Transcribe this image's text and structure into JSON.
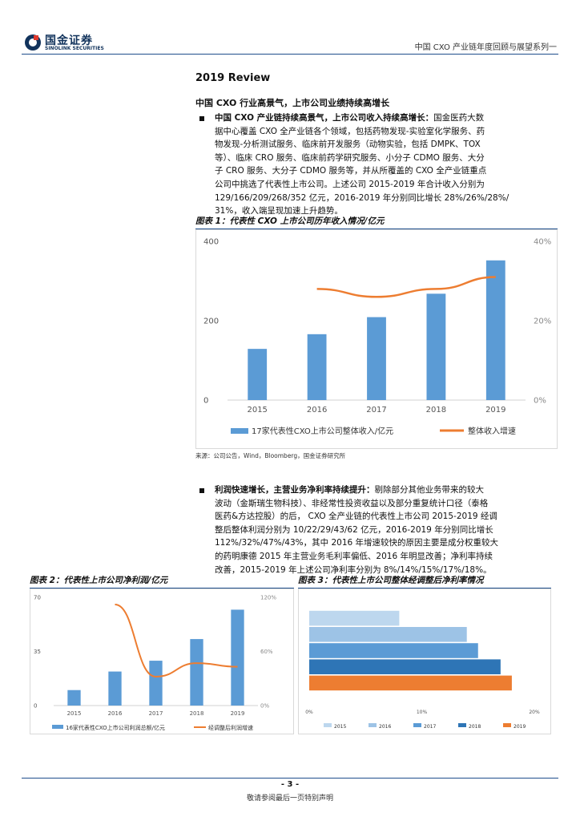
{
  "header": {
    "brand_cn": "国金证券",
    "brand_en": "SINOLINK SECURITIES",
    "report_series": "中国 CXO 产业链年度回顾与展望系列一"
  },
  "section": {
    "title": "2019 Review",
    "subtitle": "中国 CXO 行业高景气，上市公司业绩持续高增长"
  },
  "para1": {
    "lead": "中国 CXO 产业链持续高景气，上市公司收入持续高增长：",
    "lines": [
      "国金医药大数",
      "据中心覆盖 CXO 全产业链各个领域，包括药物发现-实验室化学服务、药",
      "物发现-分析测试服务、临床前开发服务（动物实验，包括 DMPK、TOX",
      "等）、临床 CRO 服务、临床前药学研究服务、小分子 CDMO 服务、大分",
      "子 CRO 服务、大分子 CDMO 服务等，并从所覆盖的 CXO 全产业链重点",
      "公司中挑选了代表性上市公司。上述公司 2015-2019 年合计收入分别为",
      "129/166/209/268/352 亿元，2016-2019 年分别同比增长 28%/26%/28%/",
      "31%，收入端呈现加速上升趋势。"
    ]
  },
  "fig1": {
    "caption": "图表 1：代表性 CXO 上市公司历年收入情况/亿元",
    "legend_bar": "17家代表性CXO上市公司整体收入/亿元",
    "legend_line": "整体收入增速"
  },
  "source_text": "来源：公司公告，Wind，Bloomberg，国金证券研究所",
  "para2": {
    "lead": "利润快速增长，主营业务净利率持续提升：",
    "lines": [
      "剔除部分其他业务带来的较大",
      "波动（金斯瑞生物科技）、非经常性投资收益以及部分重复统计口径（泰格",
      "医药&方达控股）的后， CXO 全产业链的代表性上市公司 2015-2019 经调",
      "整后整体利润分别为 10/22/29/43/62 亿元，2016-2019 年分别同比增长",
      "112%/32%/47%/43%，其中 2016 年增速较快的原因主要是成分权重较大",
      "的药明康德 2015 年主营业务毛利率偏低、2016 年明显改善；净利率持续",
      "改善，2015-2019 年上述公司净利率分别为 8%/14%/15%/17%/18%。"
    ]
  },
  "fig2": {
    "caption": "图表 2：代表性上市公司净利润/亿元",
    "legend_bar": "16家代表性CXO上市公司利润总额/亿元",
    "legend_line": "经调整后利润增速"
  },
  "fig3": {
    "caption": "图表 3：代表性上市公司整体经调整后净利率情况"
  },
  "footer": {
    "page": "- 3 -",
    "note": "敬请参阅最后一页特别声明"
  },
  "chart_data": [
    {
      "type": "bar",
      "categories": [
        "2015",
        "2016",
        "2017",
        "2018",
        "2019"
      ],
      "series": [
        {
          "name": "17家代表性CXO上市公司整体收入/亿元",
          "values": [
            129,
            166,
            209,
            268,
            352
          ],
          "color": "#5b9bd5",
          "axis": "left"
        },
        {
          "name": "整体收入增速",
          "type": "line",
          "x": [
            "2016",
            "2017",
            "2018",
            "2019"
          ],
          "values": [
            28,
            26,
            28,
            31
          ],
          "color": "#ed7d31",
          "axis": "right"
        }
      ],
      "ylim": [
        0,
        400
      ],
      "yticks": [
        "0",
        "200",
        "400"
      ],
      "y2lim": [
        0,
        40
      ],
      "y2ticks": [
        "0%",
        "20%",
        "40%"
      ]
    },
    {
      "type": "bar",
      "categories": [
        "2015",
        "2016",
        "2017",
        "2018",
        "2019"
      ],
      "series": [
        {
          "name": "16家代表性CXO上市公司利润总额/亿元",
          "values": [
            10,
            22,
            29,
            43,
            62
          ],
          "color": "#5b9bd5",
          "axis": "left"
        },
        {
          "name": "经调整后利润增速",
          "type": "line",
          "x": [
            "2016",
            "2017",
            "2018",
            "2019"
          ],
          "values": [
            112,
            32,
            47,
            43
          ],
          "color": "#ed7d31",
          "axis": "right"
        }
      ],
      "ylim": [
        0,
        70
      ],
      "yticks": [
        "0",
        "35",
        "70"
      ],
      "y2lim": [
        0,
        120
      ],
      "y2ticks": [
        "0%",
        "60%",
        "120%"
      ]
    },
    {
      "type": "bar",
      "orientation": "horizontal",
      "categories": [
        "2015",
        "2016",
        "2017",
        "2018",
        "2019"
      ],
      "values": [
        8,
        14,
        15,
        17,
        18
      ],
      "colors": [
        "#bdd7ee",
        "#9dc3e6",
        "#5b9bd5",
        "#2e75b6",
        "#ed7d31"
      ],
      "xlim": [
        0,
        20
      ],
      "xticks": [
        "0%",
        "10%",
        "20%"
      ]
    }
  ]
}
